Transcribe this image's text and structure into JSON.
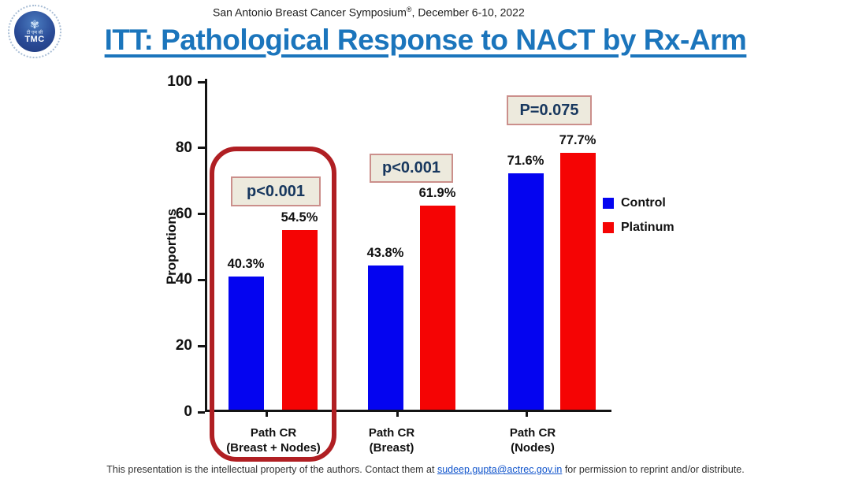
{
  "slide_header": {
    "text": "San Antonio Breast Cancer Symposium",
    "mark": "®",
    "date": ", December 6-10, 2022"
  },
  "logo": {
    "abbr": "TMC",
    "devanagari": "टी एम सी",
    "lotus_icon": "✾"
  },
  "title": "ITT: Pathological Response to NACT by Rx-Arm",
  "colors": {
    "title_blue": "#1b75bc",
    "control_blue": "#0404f0",
    "platinum_red": "#f50404",
    "highlight_red": "#b01f23",
    "pvalue_bg": "#edeadd",
    "pvalue_border": "#cb8f8b",
    "pvalue_text": "#17375e"
  },
  "chart_data": {
    "type": "bar",
    "title": "ITT: Pathological Response to NACT by Rx-Arm",
    "ylabel": "Proportions",
    "ylim": [
      0,
      100
    ],
    "yticks": [
      0,
      20,
      40,
      60,
      80,
      100
    ],
    "grid": false,
    "legend_position": "right",
    "categories": [
      {
        "line1": "Path CR",
        "line2": "(Breast + Nodes)"
      },
      {
        "line1": "Path CR",
        "line2": "(Breast)"
      },
      {
        "line1": "Path CR",
        "line2": "(Nodes)"
      }
    ],
    "series": [
      {
        "name": "Control",
        "color": "#0404f0",
        "values": [
          40.3,
          43.8,
          71.6
        ],
        "labels": [
          "40.3%",
          "43.8%",
          "71.6%"
        ]
      },
      {
        "name": "Platinum",
        "color": "#f50404",
        "values": [
          54.5,
          61.9,
          77.7
        ],
        "labels": [
          "54.5%",
          "61.9%",
          "77.7%"
        ]
      }
    ],
    "p_values": [
      {
        "label": "p<0.001"
      },
      {
        "label": "p<0.001"
      },
      {
        "label": "P=0.075"
      }
    ],
    "highlight": {
      "group": "Path CR (Breast + Nodes)",
      "color": "#b01f23"
    }
  },
  "footer": {
    "pre": "This presentation is the intellectual property of the authors. Contact them at ",
    "email": "sudeep.gupta@actrec.gov.in",
    "post": " for permission to reprint and/or distribute."
  }
}
